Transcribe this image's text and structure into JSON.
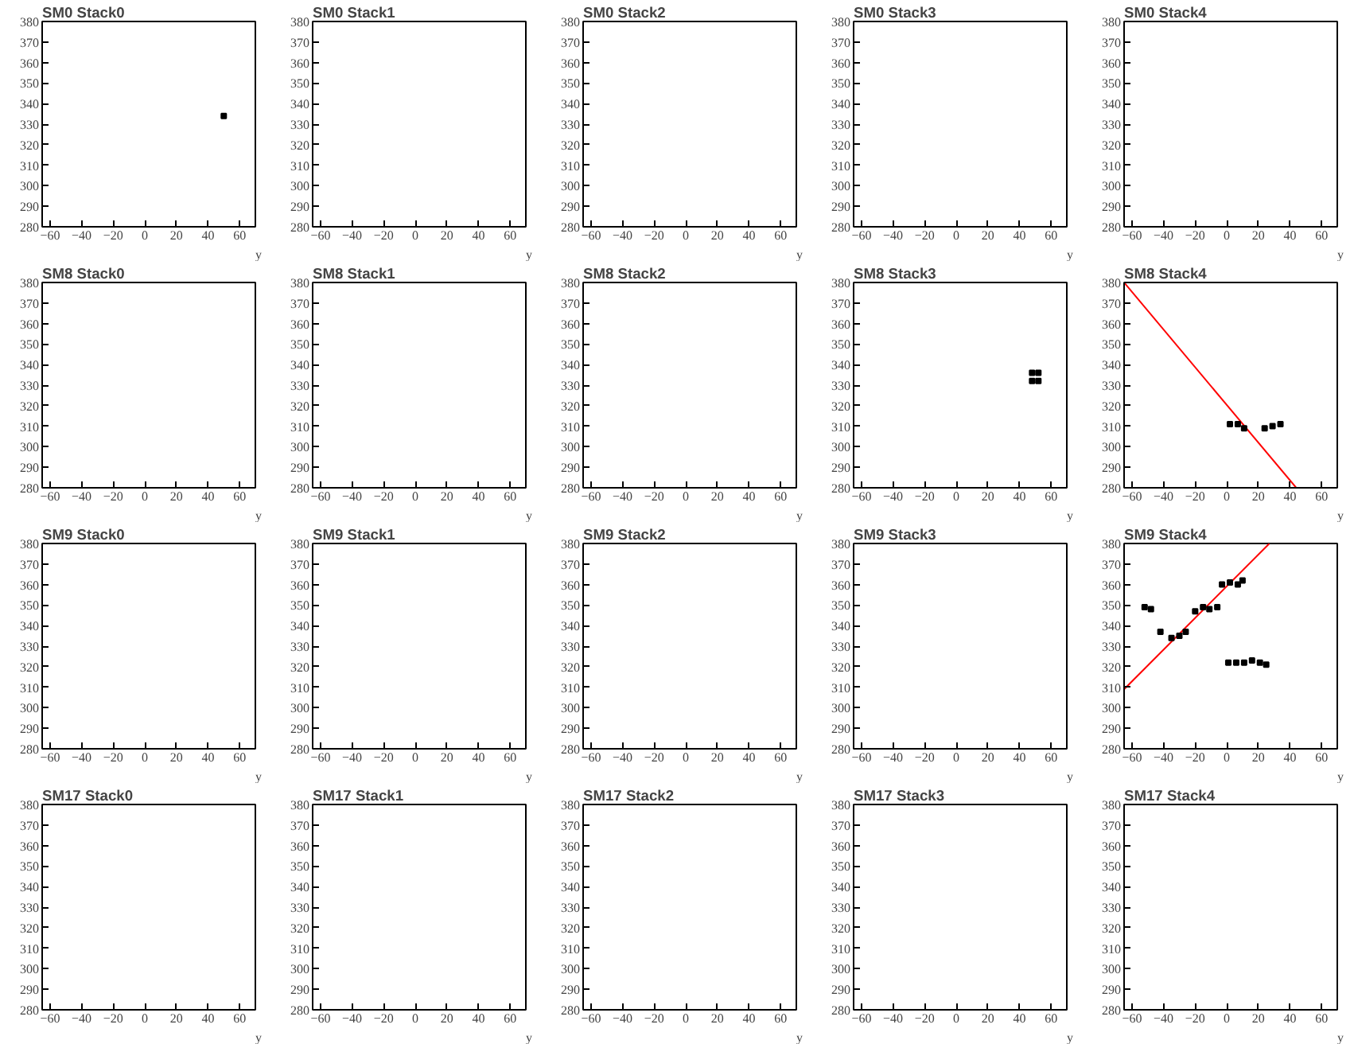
{
  "chart_data": [
    {
      "type": "scatter",
      "title": "SM0 Stack0",
      "xlabel": "y",
      "xlim": [
        -65,
        70
      ],
      "ylim": [
        280,
        380
      ],
      "xticks": [
        -60,
        -40,
        -20,
        0,
        20,
        40,
        60
      ],
      "yticks": [
        280,
        290,
        300,
        310,
        320,
        330,
        340,
        350,
        360,
        370,
        380
      ],
      "series": [
        {
          "marker": "square",
          "color": "#000000",
          "x": [
            50
          ],
          "values": [
            334
          ]
        }
      ]
    },
    {
      "type": "scatter",
      "title": "SM0 Stack1",
      "xlabel": "y",
      "xlim": [
        -65,
        70
      ],
      "ylim": [
        280,
        380
      ],
      "xticks": [
        -60,
        -40,
        -20,
        0,
        20,
        40,
        60
      ],
      "yticks": [
        280,
        290,
        300,
        310,
        320,
        330,
        340,
        350,
        360,
        370,
        380
      ]
    },
    {
      "type": "scatter",
      "title": "SM0 Stack2",
      "xlabel": "y",
      "xlim": [
        -65,
        70
      ],
      "ylim": [
        280,
        380
      ],
      "xticks": [
        -60,
        -40,
        -20,
        0,
        20,
        40,
        60
      ],
      "yticks": [
        280,
        290,
        300,
        310,
        320,
        330,
        340,
        350,
        360,
        370,
        380
      ]
    },
    {
      "type": "scatter",
      "title": "SM0 Stack3",
      "xlabel": "y",
      "xlim": [
        -65,
        70
      ],
      "ylim": [
        280,
        380
      ],
      "xticks": [
        -60,
        -40,
        -20,
        0,
        20,
        40,
        60
      ],
      "yticks": [
        280,
        290,
        300,
        310,
        320,
        330,
        340,
        350,
        360,
        370,
        380
      ]
    },
    {
      "type": "scatter",
      "title": "SM0 Stack4",
      "xlabel": "y",
      "xlim": [
        -65,
        70
      ],
      "ylim": [
        280,
        380
      ],
      "xticks": [
        -60,
        -40,
        -20,
        0,
        20,
        40,
        60
      ],
      "yticks": [
        280,
        290,
        300,
        310,
        320,
        330,
        340,
        350,
        360,
        370,
        380
      ]
    },
    {
      "type": "scatter",
      "title": "SM8 Stack0",
      "xlabel": "y",
      "xlim": [
        -65,
        70
      ],
      "ylim": [
        280,
        380
      ],
      "xticks": [
        -60,
        -40,
        -20,
        0,
        20,
        40,
        60
      ],
      "yticks": [
        280,
        290,
        300,
        310,
        320,
        330,
        340,
        350,
        360,
        370,
        380
      ]
    },
    {
      "type": "scatter",
      "title": "SM8 Stack1",
      "xlabel": "y",
      "xlim": [
        -65,
        70
      ],
      "ylim": [
        280,
        380
      ],
      "xticks": [
        -60,
        -40,
        -20,
        0,
        20,
        40,
        60
      ],
      "yticks": [
        280,
        290,
        300,
        310,
        320,
        330,
        340,
        350,
        360,
        370,
        380
      ]
    },
    {
      "type": "scatter",
      "title": "SM8 Stack2",
      "xlabel": "y",
      "xlim": [
        -65,
        70
      ],
      "ylim": [
        280,
        380
      ],
      "xticks": [
        -60,
        -40,
        -20,
        0,
        20,
        40,
        60
      ],
      "yticks": [
        280,
        290,
        300,
        310,
        320,
        330,
        340,
        350,
        360,
        370,
        380
      ]
    },
    {
      "type": "scatter",
      "title": "SM8 Stack3",
      "xlabel": "y",
      "xlim": [
        -65,
        70
      ],
      "ylim": [
        280,
        380
      ],
      "xticks": [
        -60,
        -40,
        -20,
        0,
        20,
        40,
        60
      ],
      "yticks": [
        280,
        290,
        300,
        310,
        320,
        330,
        340,
        350,
        360,
        370,
        380
      ],
      "series": [
        {
          "marker": "square",
          "color": "#000000",
          "x": [
            48,
            52,
            48,
            52
          ],
          "values": [
            332,
            332,
            336,
            336
          ]
        }
      ]
    },
    {
      "type": "scatter",
      "title": "SM8 Stack4",
      "xlabel": "y",
      "xlim": [
        -65,
        70
      ],
      "ylim": [
        280,
        380
      ],
      "xticks": [
        -60,
        -40,
        -20,
        0,
        20,
        40,
        60
      ],
      "yticks": [
        280,
        290,
        300,
        310,
        320,
        330,
        340,
        350,
        360,
        370,
        380
      ],
      "series": [
        {
          "type": "line",
          "color": "#ff0000",
          "x": [
            -65,
            44
          ],
          "values": [
            380,
            280
          ]
        },
        {
          "marker": "square",
          "color": "#000000",
          "x": [
            2,
            7,
            11,
            24,
            29,
            34
          ],
          "values": [
            311,
            311,
            309,
            309,
            310,
            311
          ]
        }
      ]
    },
    {
      "type": "scatter",
      "title": "SM9 Stack0",
      "xlabel": "y",
      "xlim": [
        -65,
        70
      ],
      "ylim": [
        280,
        380
      ],
      "xticks": [
        -60,
        -40,
        -20,
        0,
        20,
        40,
        60
      ],
      "yticks": [
        280,
        290,
        300,
        310,
        320,
        330,
        340,
        350,
        360,
        370,
        380
      ]
    },
    {
      "type": "scatter",
      "title": "SM9 Stack1",
      "xlabel": "y",
      "xlim": [
        -65,
        70
      ],
      "ylim": [
        280,
        380
      ],
      "xticks": [
        -60,
        -40,
        -20,
        0,
        20,
        40,
        60
      ],
      "yticks": [
        280,
        290,
        300,
        310,
        320,
        330,
        340,
        350,
        360,
        370,
        380
      ]
    },
    {
      "type": "scatter",
      "title": "SM9 Stack2",
      "xlabel": "y",
      "xlim": [
        -65,
        70
      ],
      "ylim": [
        280,
        380
      ],
      "xticks": [
        -60,
        -40,
        -20,
        0,
        20,
        40,
        60
      ],
      "yticks": [
        280,
        290,
        300,
        310,
        320,
        330,
        340,
        350,
        360,
        370,
        380
      ]
    },
    {
      "type": "scatter",
      "title": "SM9 Stack3",
      "xlabel": "y",
      "xlim": [
        -65,
        70
      ],
      "ylim": [
        280,
        380
      ],
      "xticks": [
        -60,
        -40,
        -20,
        0,
        20,
        40,
        60
      ],
      "yticks": [
        280,
        290,
        300,
        310,
        320,
        330,
        340,
        350,
        360,
        370,
        380
      ]
    },
    {
      "type": "scatter",
      "title": "SM9 Stack4",
      "xlabel": "y",
      "xlim": [
        -65,
        70
      ],
      "ylim": [
        280,
        380
      ],
      "xticks": [
        -60,
        -40,
        -20,
        0,
        20,
        40,
        60
      ],
      "yticks": [
        280,
        290,
        300,
        310,
        320,
        330,
        340,
        350,
        360,
        370,
        380
      ],
      "series": [
        {
          "type": "line",
          "color": "#ff0000",
          "x": [
            -65,
            27
          ],
          "values": [
            309,
            380
          ]
        },
        {
          "marker": "square",
          "color": "#000000",
          "x": [
            -52,
            -48,
            -42,
            -35,
            -30,
            -26,
            -20,
            -15,
            -11,
            -6,
            -3,
            2,
            7,
            10,
            1,
            6,
            11,
            16,
            21,
            25
          ],
          "values": [
            349,
            348,
            337,
            334,
            335,
            337,
            347,
            349,
            348,
            349,
            360,
            361,
            360,
            362,
            322,
            322,
            322,
            323,
            322,
            321
          ]
        }
      ]
    },
    {
      "type": "scatter",
      "title": "SM17 Stack0",
      "xlabel": "y",
      "xlim": [
        -65,
        70
      ],
      "ylim": [
        280,
        380
      ],
      "xticks": [
        -60,
        -40,
        -20,
        0,
        20,
        40,
        60
      ],
      "yticks": [
        280,
        290,
        300,
        310,
        320,
        330,
        340,
        350,
        360,
        370,
        380
      ]
    },
    {
      "type": "scatter",
      "title": "SM17 Stack1",
      "xlabel": "y",
      "xlim": [
        -65,
        70
      ],
      "ylim": [
        280,
        380
      ],
      "xticks": [
        -60,
        -40,
        -20,
        0,
        20,
        40,
        60
      ],
      "yticks": [
        280,
        290,
        300,
        310,
        320,
        330,
        340,
        350,
        360,
        370,
        380
      ]
    },
    {
      "type": "scatter",
      "title": "SM17 Stack2",
      "xlabel": "y",
      "xlim": [
        -65,
        70
      ],
      "ylim": [
        280,
        380
      ],
      "xticks": [
        -60,
        -40,
        -20,
        0,
        20,
        40,
        60
      ],
      "yticks": [
        280,
        290,
        300,
        310,
        320,
        330,
        340,
        350,
        360,
        370,
        380
      ]
    },
    {
      "type": "scatter",
      "title": "SM17 Stack3",
      "xlabel": "y",
      "xlim": [
        -65,
        70
      ],
      "ylim": [
        280,
        380
      ],
      "xticks": [
        -60,
        -40,
        -20,
        0,
        20,
        40,
        60
      ],
      "yticks": [
        280,
        290,
        300,
        310,
        320,
        330,
        340,
        350,
        360,
        370,
        380
      ]
    },
    {
      "type": "scatter",
      "title": "SM17 Stack4",
      "xlabel": "y",
      "xlim": [
        -65,
        70
      ],
      "ylim": [
        280,
        380
      ],
      "xticks": [
        -60,
        -40,
        -20,
        0,
        20,
        40,
        60
      ],
      "yticks": [
        280,
        290,
        300,
        310,
        320,
        330,
        340,
        350,
        360,
        370,
        380
      ]
    }
  ]
}
